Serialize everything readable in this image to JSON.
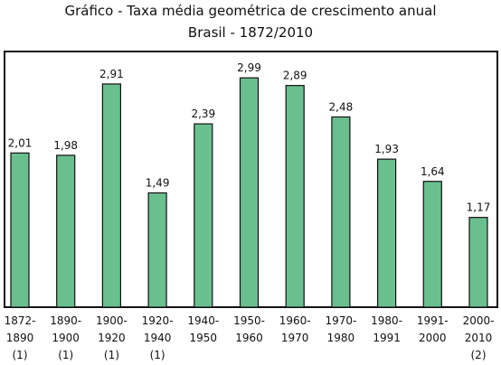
{
  "chart_data": {
    "type": "bar",
    "title": "Gráfico - Taxa média geométrica de crescimento anual",
    "subtitle": "Brasil - 1872/2010",
    "categories": [
      "1872-\n1890\n(1)",
      "1890-\n1900\n(1)",
      "1900-\n1920\n(1)",
      "1920-\n1940\n(1)",
      "1940-\n1950",
      "1950-\n1960",
      "1960-\n1970",
      "1970-\n1980",
      "1980-\n1991",
      "1991-\n2000",
      "2000-\n2010\n(2)"
    ],
    "values": [
      2.01,
      1.98,
      2.91,
      1.49,
      2.39,
      2.99,
      2.89,
      2.48,
      1.93,
      1.64,
      1.17
    ],
    "value_labels": [
      "2,01",
      "1,98",
      "2,91",
      "1,49",
      "2,39",
      "2,99",
      "2,89",
      "2,48",
      "1,93",
      "1,64",
      "1,17"
    ],
    "color": "#6abf8f"
  }
}
